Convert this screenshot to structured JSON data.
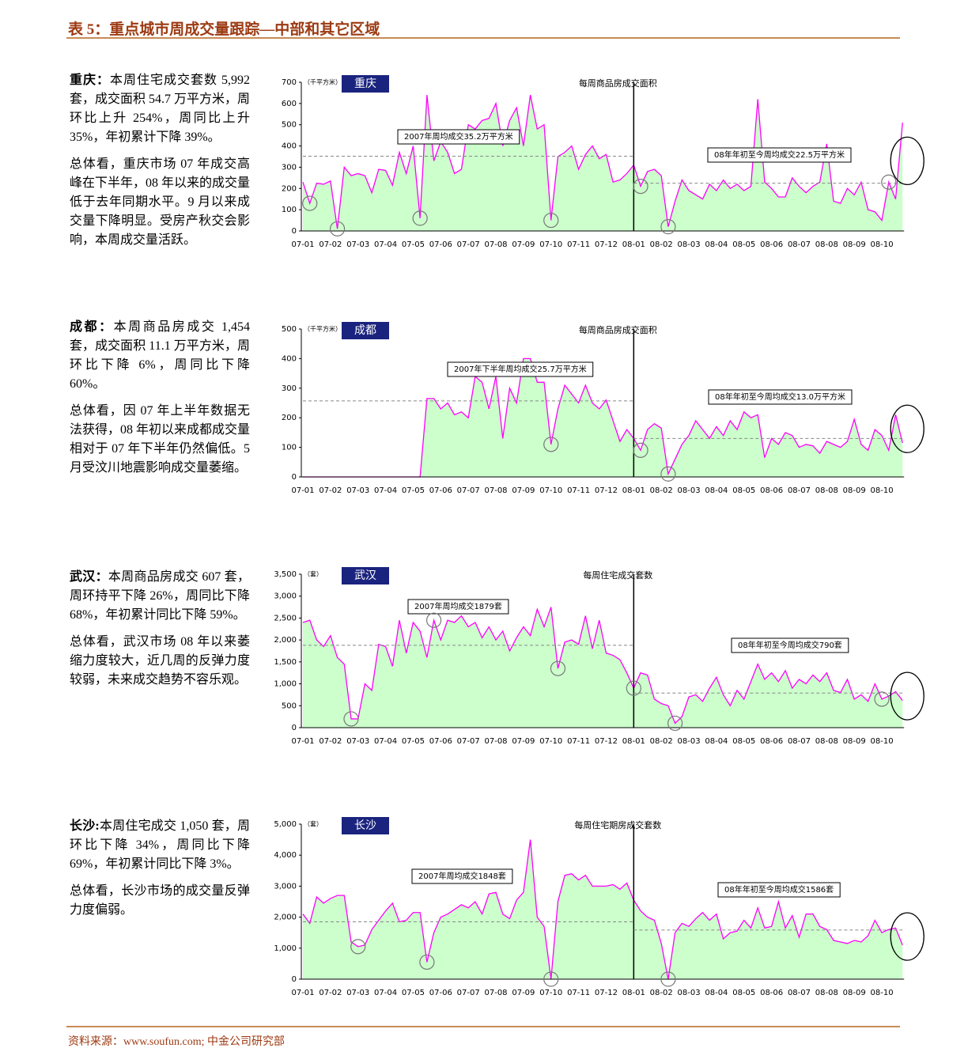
{
  "title": "表 5：重点城市周成交量跟踪—中部和其它区域",
  "sections": [
    {
      "lead": "重庆：",
      "text": "本周住宅成交套数 5,992 套，成交面积 54.7 万平方米，周环比上升 254%，周同比上升 35%，年初累计下降 39%。",
      "summary": "总体看，重庆市场 07 年成交高峰在下半年，08 年以来的成交量低于去年同期水平。9 月以来成交量下降明显。受房产秋交会影响，本周成交量活跃。"
    },
    {
      "lead": "成都：",
      "text": "本周商品房成交 1,454 套，成交面积 11.1 万平方米，周环比下降 6%，周同比下降 60%。",
      "summary": "总体看，因 07 年上半年数据无法获得，08 年初以来成都成交量相对于 07 年下半年仍然偏低。5 月受汶川地震影响成交量萎缩。"
    },
    {
      "lead": "武汉：",
      "text": "本周商品房成交 607 套，周环持平下降 26%，周同比下降 68%，年初累计同比下降 59%。",
      "summary": "总体看，武汉市场 08 年以来萎缩力度较大，近几周的反弹力度较弱，未来成交趋势不容乐观。"
    },
    {
      "lead": "长沙:",
      "text": "本周住宅成交 1,050 套，周环比下降 34%，周同比下降 69%，年初累计同比下降 3%。",
      "summary": "总体看，长沙市场的成交量反弹力度偏弱。"
    }
  ],
  "chart_data": [
    {
      "type": "area",
      "title": "每周商品房成交面积",
      "unit_label": "（千平方米）",
      "city": "重庆",
      "color": "#ff00ff",
      "fill_color": "#ccffcc",
      "categories": [
        "07-01",
        null,
        null,
        null,
        "07-02",
        null,
        null,
        null,
        "07-03",
        null,
        null,
        null,
        "07-04",
        null,
        null,
        null,
        "07-05",
        null,
        null,
        null,
        "07-06",
        null,
        null,
        null,
        "07-07",
        null,
        null,
        null,
        "07-08",
        null,
        null,
        null,
        "07-09",
        null,
        null,
        null,
        "07-10",
        null,
        null,
        null,
        "07-11",
        null,
        null,
        null,
        "07-12",
        null,
        null,
        null,
        "08-01",
        null,
        null,
        null,
        "08-02",
        null,
        null,
        null,
        "08-03",
        null,
        null,
        null,
        "08-04",
        null,
        null,
        null,
        "08-05",
        null,
        null,
        null,
        "08-06",
        null,
        null,
        null,
        "08-07",
        null,
        null,
        null,
        "08-08",
        null,
        null,
        null,
        "08-09",
        null,
        null,
        null,
        "08-10",
        null,
        null,
        null
      ],
      "values": [
        230,
        130,
        225,
        220,
        235,
        10,
        300,
        260,
        270,
        260,
        180,
        290,
        285,
        215,
        370,
        270,
        400,
        60,
        640,
        330,
        420,
        370,
        270,
        290,
        500,
        480,
        520,
        530,
        600,
        400,
        520,
        580,
        400,
        640,
        480,
        500,
        50,
        350,
        370,
        400,
        290,
        360,
        400,
        340,
        360,
        230,
        240,
        270,
        310,
        210,
        280,
        290,
        260,
        20,
        140,
        240,
        190,
        170,
        150,
        220,
        190,
        240,
        200,
        220,
        190,
        210,
        620,
        230,
        200,
        160,
        160,
        250,
        210,
        180,
        210,
        230,
        410,
        140,
        130,
        200,
        170,
        230,
        100,
        90,
        50,
        230,
        150,
        510
      ],
      "ylim": [
        0,
        700
      ],
      "yticks": [
        0,
        100,
        200,
        300,
        400,
        500,
        600,
        700
      ],
      "ref_lines": [
        {
          "label": "2007年周均成交35.2万平方米",
          "value": 352
        },
        {
          "label": "08年年初至今周均成交22.5万平方米",
          "value": 225
        }
      ]
    },
    {
      "type": "area",
      "title": "每周商品房成交面积",
      "unit_label": "（千平方米）",
      "city": "成都",
      "color": "#ff00ff",
      "fill_color": "#ccffcc",
      "categories": [
        "07-01",
        null,
        null,
        null,
        "07-02",
        null,
        null,
        null,
        "07-03",
        null,
        null,
        null,
        "07-04",
        null,
        null,
        null,
        "07-05",
        null,
        null,
        null,
        "07-06",
        null,
        null,
        null,
        "07-07",
        null,
        null,
        null,
        "07-08",
        null,
        null,
        null,
        "07-09",
        null,
        null,
        null,
        "07-10",
        null,
        null,
        null,
        "07-11",
        null,
        null,
        null,
        "07-12",
        null,
        null,
        null,
        "08-01",
        null,
        null,
        null,
        "08-02",
        null,
        null,
        null,
        "08-03",
        null,
        null,
        null,
        "08-04",
        null,
        null,
        null,
        "08-05",
        null,
        null,
        null,
        "08-06",
        null,
        null,
        null,
        "08-07",
        null,
        null,
        null,
        "08-08",
        null,
        null,
        null,
        "08-09",
        null,
        null,
        null,
        "08-10",
        null,
        null,
        null
      ],
      "values": [
        0,
        0,
        0,
        0,
        0,
        0,
        0,
        0,
        0,
        0,
        0,
        0,
        0,
        0,
        0,
        0,
        0,
        0,
        265,
        265,
        230,
        250,
        210,
        220,
        200,
        340,
        320,
        230,
        340,
        130,
        300,
        250,
        400,
        400,
        320,
        320,
        110,
        230,
        310,
        280,
        250,
        310,
        250,
        230,
        260,
        190,
        120,
        160,
        130,
        90,
        160,
        180,
        165,
        10,
        60,
        110,
        140,
        190,
        160,
        130,
        170,
        140,
        190,
        160,
        220,
        200,
        210,
        65,
        130,
        110,
        150,
        140,
        100,
        110,
        105,
        80,
        120,
        110,
        100,
        120,
        195,
        110,
        90,
        160,
        140,
        90,
        210,
        115
      ],
      "ylim": [
        0,
        500
      ],
      "yticks": [
        0,
        100,
        200,
        300,
        400,
        500
      ],
      "ref_lines": [
        {
          "label": "2007年下半年周均成交25.7万平方米",
          "value": 257
        },
        {
          "label": "08年年初至今周均成交13.0万平方米",
          "value": 130
        }
      ]
    },
    {
      "type": "area",
      "title": "每周住宅成交套数",
      "unit_label": "（套）",
      "city": "武汉",
      "color": "#ff00ff",
      "fill_color": "#ccffcc",
      "categories": [
        "07-01",
        null,
        null,
        null,
        "07-02",
        null,
        null,
        null,
        "07-03",
        null,
        null,
        null,
        "07-04",
        null,
        null,
        null,
        "07-05",
        null,
        null,
        null,
        "07-06",
        null,
        null,
        null,
        "07-07",
        null,
        null,
        null,
        "07-08",
        null,
        null,
        null,
        "07-09",
        null,
        null,
        null,
        "07-10",
        null,
        null,
        null,
        "07-11",
        null,
        null,
        null,
        "07-12",
        null,
        null,
        null,
        "08-01",
        null,
        null,
        null,
        "08-02",
        null,
        null,
        null,
        "08-03",
        null,
        null,
        null,
        "08-04",
        null,
        null,
        null,
        "08-05",
        null,
        null,
        null,
        "08-06",
        null,
        null,
        null,
        "08-07",
        null,
        null,
        null,
        "08-08",
        null,
        null,
        null,
        "08-09",
        null,
        null,
        null,
        "08-10",
        null,
        null,
        null
      ],
      "values": [
        2400,
        2450,
        2000,
        1850,
        2100,
        1600,
        1450,
        200,
        200,
        1000,
        850,
        1900,
        1850,
        1400,
        2450,
        1700,
        2400,
        2200,
        1600,
        2450,
        2000,
        2450,
        2400,
        2550,
        2300,
        2400,
        2050,
        2300,
        2000,
        2200,
        1750,
        2050,
        2300,
        2100,
        2700,
        2300,
        2750,
        1350,
        1950,
        2000,
        1900,
        2550,
        1800,
        2450,
        1700,
        1650,
        1550,
        1250,
        900,
        1250,
        1200,
        650,
        550,
        500,
        100,
        250,
        700,
        750,
        600,
        900,
        1150,
        750,
        500,
        850,
        650,
        1050,
        1450,
        1100,
        1250,
        1050,
        1300,
        900,
        1100,
        1000,
        1200,
        1050,
        1250,
        850,
        800,
        1100,
        650,
        750,
        600,
        1000,
        650,
        720,
        820,
        620
      ],
      "ylim": [
        0,
        3500
      ],
      "yticks": [
        0,
        {
          "value": 500,
          "label": "500"
        },
        {
          "value": 1000,
          "label": "1,000"
        },
        {
          "value": 1500,
          "label": "1,500"
        },
        {
          "value": 2000,
          "label": "2,000"
        },
        {
          "value": 2500,
          "label": "2,500"
        },
        {
          "value": 3000,
          "label": "3,000"
        },
        {
          "value": 3500,
          "label": "3,500"
        }
      ],
      "ref_lines": [
        {
          "label": "2007年周均成交1879套",
          "value": 1879
        },
        {
          "label": "08年年初至今周均成交790套",
          "value": 790
        }
      ]
    },
    {
      "type": "area",
      "title": "每周住宅期房成交套数",
      "unit_label": "（套）",
      "city": "长沙",
      "color": "#ff00ff",
      "fill_color": "#ccffcc",
      "categories": [
        "07-01",
        null,
        null,
        null,
        "07-02",
        null,
        null,
        null,
        "07-03",
        null,
        null,
        null,
        "07-04",
        null,
        null,
        null,
        "07-05",
        null,
        null,
        null,
        "07-06",
        null,
        null,
        null,
        "07-07",
        null,
        null,
        null,
        "07-08",
        null,
        null,
        null,
        "07-09",
        null,
        null,
        null,
        "07-10",
        null,
        null,
        null,
        "07-11",
        null,
        null,
        null,
        "07-12",
        null,
        null,
        null,
        "08-01",
        null,
        null,
        null,
        "08-02",
        null,
        null,
        null,
        "08-03",
        null,
        null,
        null,
        "08-04",
        null,
        null,
        null,
        "08-05",
        null,
        null,
        null,
        "08-06",
        null,
        null,
        null,
        "08-07",
        null,
        null,
        null,
        "08-08",
        null,
        null,
        null,
        "08-09",
        null,
        null,
        null,
        "08-10",
        null,
        null,
        null
      ],
      "values": [
        2100,
        1800,
        2650,
        2450,
        2600,
        2700,
        2700,
        1200,
        1050,
        1100,
        1600,
        1900,
        2200,
        2450,
        1850,
        1900,
        2150,
        2150,
        550,
        1500,
        2000,
        2100,
        2250,
        2400,
        2300,
        2500,
        2100,
        2750,
        2800,
        2100,
        1950,
        2550,
        2800,
        4500,
        2000,
        1700,
        0,
        2500,
        3350,
        3400,
        3200,
        3350,
        3000,
        3000,
        3000,
        3050,
        2900,
        3100,
        2550,
        2200,
        2000,
        1900,
        1150,
        0,
        1500,
        1800,
        1700,
        1950,
        2150,
        1900,
        2100,
        1300,
        1500,
        1550,
        1900,
        1650,
        2300,
        1650,
        1700,
        2500,
        1650,
        2050,
        1350,
        2100,
        2100,
        1700,
        1600,
        1250,
        1200,
        1150,
        1250,
        1200,
        1400,
        1900,
        1500,
        1600,
        1650,
        1100
      ],
      "ylim": [
        0,
        5000
      ],
      "yticks": [
        0,
        {
          "value": 1000,
          "label": "1,000"
        },
        {
          "value": 2000,
          "label": "2,000"
        },
        {
          "value": 3000,
          "label": "3,000"
        },
        {
          "value": 4000,
          "label": "4,000"
        },
        {
          "value": 5000,
          "label": "5,000"
        }
      ],
      "ref_lines": [
        {
          "label": "2007年周均成交1848套",
          "value": 1848
        },
        {
          "label": "08年年初至今周均成交1586套",
          "value": 1586
        }
      ]
    }
  ],
  "footer": "资料来源：www.soufun.com; 中金公司研究部"
}
